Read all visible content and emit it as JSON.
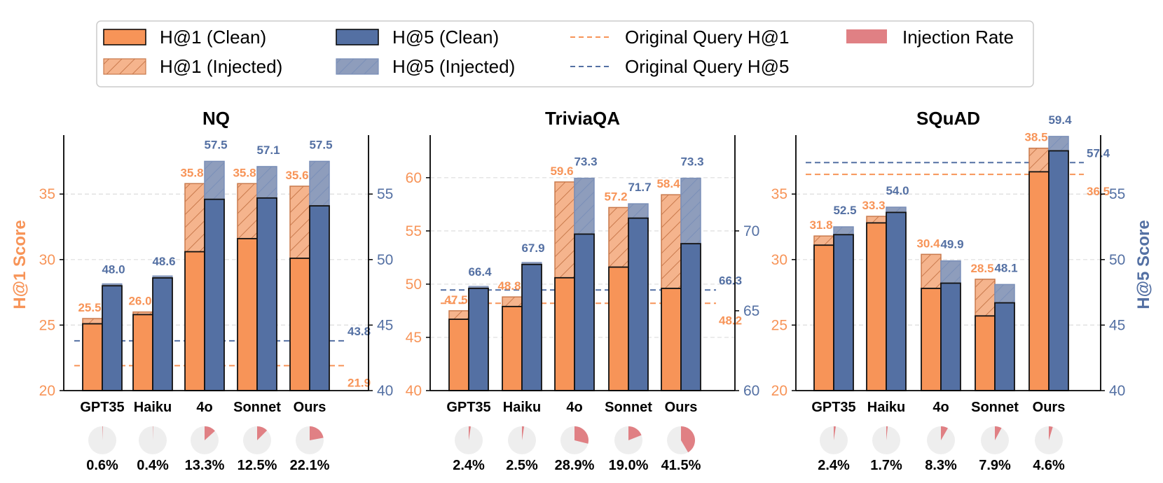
{
  "colors": {
    "h1": "#f79458",
    "h5": "#5470a3",
    "h1_injected": "#f5b48d",
    "h5_injected": "#8e9dbc",
    "injection": "#e08084",
    "pie_bg": "#eeeeee",
    "grid": "#dddddd"
  },
  "legend": {
    "h1_clean": "H@1 (Clean)",
    "h1_injected": "H@1 (Injected)",
    "h5_clean": "H@5 (Clean)",
    "h5_injected": "H@5 (Injected)",
    "orig_h1": "Original Query H@1",
    "orig_h5": "Original Query H@5",
    "injection_rate": "Injection Rate"
  },
  "chart_data": [
    {
      "type": "bar",
      "title": "NQ",
      "ylabel": "H@1 Score",
      "y2label": "H@5 Score",
      "categories": [
        "GPT35",
        "Haiku",
        "4o",
        "Sonnet",
        "Ours"
      ],
      "ylim": [
        20,
        39.5
      ],
      "y2lim": [
        40,
        59.5
      ],
      "yticks": [
        20,
        25,
        30,
        35
      ],
      "y2ticks": [
        40,
        45,
        50,
        55
      ],
      "series": [
        {
          "name": "H@1 (Clean)",
          "values": [
            25.1,
            25.8,
            30.6,
            31.6,
            30.1
          ]
        },
        {
          "name": "H@1 (Injected)",
          "values": [
            25.5,
            26.0,
            35.8,
            35.8,
            35.6
          ]
        },
        {
          "name": "H@5 (Clean)",
          "values": [
            48.0,
            48.6,
            54.6,
            54.7,
            54.1
          ]
        },
        {
          "name": "H@5 (Injected)",
          "values": [
            48.0,
            48.6,
            57.5,
            57.1,
            57.5
          ]
        }
      ],
      "labels_h1": [
        "25.5",
        "26.0",
        "35.8",
        "35.8",
        "35.6"
      ],
      "labels_h5": [
        "48.0",
        "48.6",
        "57.5",
        "57.1",
        "57.5"
      ],
      "orig_h1": 21.9,
      "orig_h5": 43.8,
      "orig_h1_label": "21.9",
      "orig_h5_label": "43.8",
      "injection_rates": [
        0.6,
        0.4,
        13.3,
        12.5,
        22.1
      ],
      "injection_labels": [
        "0.6%",
        "0.4%",
        "13.3%",
        "12.5%",
        "22.1%"
      ]
    },
    {
      "type": "bar",
      "title": "TriviaQA",
      "ylabel": "H@1 Score",
      "y2label": "H@5 Score",
      "categories": [
        "GPT35",
        "Haiku",
        "4o",
        "Sonnet",
        "Ours"
      ],
      "ylim": [
        40,
        64
      ],
      "y2lim": [
        60,
        76
      ],
      "yticks": [
        40,
        45,
        50,
        55,
        60
      ],
      "y2ticks": [
        60,
        65,
        70
      ],
      "series": [
        {
          "name": "H@1 (Clean)",
          "values": [
            46.7,
            47.9,
            50.6,
            51.6,
            49.6
          ]
        },
        {
          "name": "H@1 (Injected)",
          "values": [
            47.5,
            48.8,
            59.6,
            57.2,
            58.4
          ]
        },
        {
          "name": "H@5 (Clean)",
          "values": [
            66.4,
            67.9,
            69.8,
            70.8,
            69.2
          ]
        },
        {
          "name": "H@5 (Injected)",
          "values": [
            66.4,
            67.9,
            73.3,
            71.7,
            73.3
          ]
        }
      ],
      "labels_h1": [
        "47.5",
        "48.8",
        "59.6",
        "57.2",
        "58.4"
      ],
      "labels_h5": [
        "66.4",
        "67.9",
        "73.3",
        "71.7",
        "73.3"
      ],
      "orig_h1": 48.2,
      "orig_h5": 66.3,
      "orig_h1_label": "48.2",
      "orig_h5_label": "66.3",
      "injection_rates": [
        2.4,
        2.5,
        28.9,
        19.0,
        41.5
      ],
      "injection_labels": [
        "2.4%",
        "2.5%",
        "28.9%",
        "19.0%",
        "41.5%"
      ]
    },
    {
      "type": "bar",
      "title": "SQuAD",
      "ylabel": "H@1 Score",
      "y2label": "H@5 Score",
      "categories": [
        "GPT35",
        "Haiku",
        "4o",
        "Sonnet",
        "Ours"
      ],
      "ylim": [
        20,
        39.5
      ],
      "y2lim": [
        40,
        59.5
      ],
      "yticks": [
        20,
        25,
        30,
        35
      ],
      "y2ticks": [
        40,
        45,
        50,
        55
      ],
      "series": [
        {
          "name": "H@1 (Clean)",
          "values": [
            31.1,
            32.8,
            27.8,
            25.7,
            36.7
          ]
        },
        {
          "name": "H@1 (Injected)",
          "values": [
            31.8,
            33.3,
            30.4,
            28.5,
            38.5
          ]
        },
        {
          "name": "H@5 (Clean)",
          "values": [
            51.9,
            53.6,
            48.2,
            46.7,
            58.3
          ]
        },
        {
          "name": "H@5 (Injected)",
          "values": [
            52.5,
            54.0,
            49.9,
            48.1,
            59.4
          ]
        }
      ],
      "labels_h1": [
        "31.8",
        "33.3",
        "30.4",
        "28.5",
        "38.5"
      ],
      "labels_h5": [
        "52.5",
        "54.0",
        "49.9",
        "48.1",
        "59.4"
      ],
      "orig_h1": 36.5,
      "orig_h5": 57.4,
      "orig_h1_label": "36.5",
      "orig_h5_label": "57.4",
      "injection_rates": [
        2.4,
        1.7,
        8.3,
        7.9,
        4.6
      ],
      "injection_labels": [
        "2.4%",
        "1.7%",
        "8.3%",
        "7.9%",
        "4.6%"
      ]
    }
  ]
}
